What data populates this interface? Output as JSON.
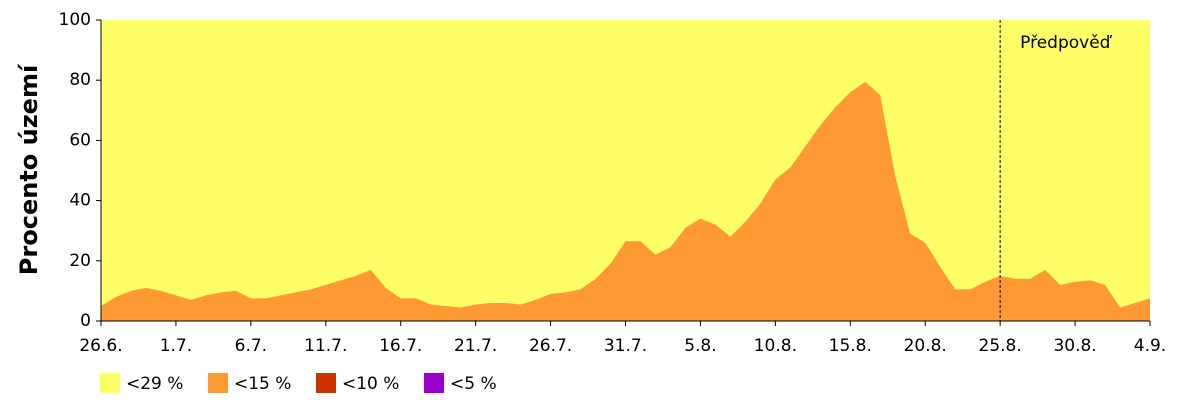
{
  "chart_data": {
    "type": "area",
    "y_label": "Procento území",
    "categories": [
      "26.6.",
      null,
      null,
      null,
      null,
      "1.7.",
      null,
      null,
      null,
      null,
      "6.7.",
      null,
      null,
      null,
      null,
      "11.7.",
      null,
      null,
      null,
      null,
      "16.7.",
      null,
      null,
      null,
      null,
      "21.7.",
      null,
      null,
      null,
      null,
      "26.7.",
      null,
      null,
      null,
      null,
      "31.7.",
      null,
      null,
      null,
      null,
      "5.8.",
      null,
      null,
      null,
      null,
      "10.8.",
      null,
      null,
      null,
      null,
      "15.8.",
      null,
      null,
      null,
      null,
      "20.8.",
      null,
      null,
      null,
      null,
      "25.8.",
      null,
      null,
      null,
      null,
      "30.8.",
      null,
      null,
      null,
      null,
      "4.9."
    ],
    "series": [
      {
        "name": "<29 %",
        "color": "#ffff66",
        "values": [
          100,
          100,
          100,
          100,
          100,
          100,
          100,
          100,
          100,
          100,
          100,
          100,
          100,
          100,
          100,
          100,
          100,
          100,
          100,
          100,
          100,
          100,
          100,
          100,
          100,
          100,
          100,
          100,
          100,
          100,
          100,
          100,
          100,
          100,
          100,
          100,
          100,
          100,
          100,
          100,
          100,
          100,
          100,
          100,
          100,
          100,
          100,
          100,
          100,
          100,
          100,
          100,
          100,
          100,
          100,
          100,
          100,
          100,
          100,
          100,
          100,
          100,
          100,
          100,
          100,
          100,
          100,
          100,
          100,
          100,
          100
        ]
      },
      {
        "name": "<15 %",
        "color": "#ff9933",
        "values": [
          5,
          8,
          10,
          11,
          10,
          8.5,
          7,
          8.5,
          9.5,
          10,
          7.5,
          7.5,
          8.5,
          9.5,
          10.5,
          12,
          13.5,
          15,
          17,
          11,
          7.5,
          7.5,
          5.5,
          5,
          4.5,
          5.5,
          6,
          6,
          5.5,
          7,
          9,
          9.5,
          10.5,
          14,
          19,
          26.5,
          26.5,
          22,
          24.5,
          31,
          34,
          32,
          28,
          33,
          39,
          47,
          51,
          58,
          65,
          71,
          76,
          79.5,
          75,
          48,
          29,
          26,
          18,
          10.5,
          10.5,
          13,
          15,
          14,
          14,
          17,
          12,
          13,
          13.5,
          12,
          4.5,
          6,
          7.5
        ]
      },
      {
        "name": "<10 %",
        "color": "#cc3300",
        "values": [
          0,
          0,
          0,
          0,
          0,
          0,
          0,
          0,
          0,
          0,
          0,
          0,
          0,
          0,
          0,
          0,
          0,
          0,
          0,
          0,
          0,
          0,
          0,
          0,
          0,
          0,
          0,
          0,
          0,
          0,
          0,
          0,
          0,
          0,
          0,
          0,
          0,
          0,
          0,
          0,
          0,
          0,
          0,
          0,
          0,
          0,
          0,
          0,
          0,
          0,
          0,
          0,
          0,
          0,
          0,
          0,
          0,
          0,
          0,
          0,
          0,
          0,
          0,
          0,
          0,
          0,
          0,
          0,
          0,
          0,
          0
        ]
      },
      {
        "name": "<5 %",
        "color": "#9900cc",
        "values": [
          0,
          0,
          0,
          0,
          0,
          0,
          0,
          0,
          0,
          0,
          0,
          0,
          0,
          0,
          0,
          0,
          0,
          0,
          0,
          0,
          0,
          0,
          0,
          0,
          0,
          0,
          0,
          0,
          0,
          0,
          0,
          0,
          0,
          0,
          0,
          0,
          0,
          0,
          0,
          0,
          0,
          0,
          0,
          0,
          0,
          0,
          0,
          0,
          0,
          0,
          0,
          0,
          0,
          0,
          0,
          0,
          0,
          0,
          0,
          0,
          0,
          0,
          0,
          0,
          0,
          0,
          0,
          0,
          0,
          0,
          0
        ]
      }
    ],
    "ylim": [
      0,
      100
    ],
    "yticks": [
      0,
      20,
      40,
      60,
      80,
      100
    ],
    "annotation": {
      "text": "Předpověď",
      "x_index": 60
    }
  }
}
